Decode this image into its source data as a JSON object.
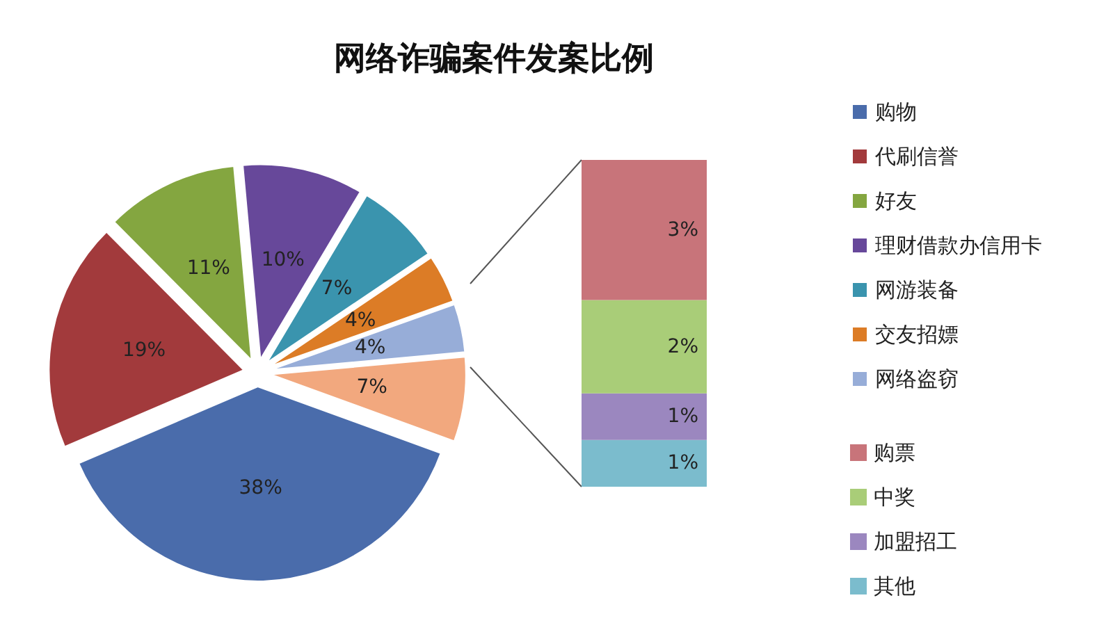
{
  "chart_data": [
    {
      "type": "pie",
      "title": "网络诈骗案件发案比例",
      "categories": [
        "购物",
        "代刷信誉",
        "好友",
        "理财借款办信用卡",
        "网游装备",
        "交友招嫖",
        "网络盗窃",
        null
      ],
      "values": [
        38,
        19,
        11,
        10,
        7,
        4,
        4,
        7
      ],
      "colors": [
        "#4a6cab",
        "#a23a3c",
        "#84a640",
        "#67489a",
        "#3a94ae",
        "#dc7c26",
        "#97add8",
        "#f2a87e"
      ],
      "value_labels": [
        "38%",
        "19%",
        "11%",
        "10%",
        "7%",
        "4%",
        "4%",
        "7%"
      ],
      "legend": "right"
    },
    {
      "type": "bar",
      "stacked": true,
      "categories": [
        null
      ],
      "legend": "right",
      "series": [
        {
          "name": "其他",
          "color": "#7bbccd",
          "values": [
            1
          ],
          "value_labels": [
            "1%"
          ]
        },
        {
          "name": "加盟招工",
          "color": "#9b87bf",
          "values": [
            1
          ],
          "value_labels": [
            "1%"
          ]
        },
        {
          "name": "中奖",
          "color": "#a9cd78",
          "values": [
            2
          ],
          "value_labels": [
            "2%"
          ]
        },
        {
          "name": "购票",
          "color": "#c8747a",
          "values": [
            3
          ],
          "value_labels": [
            "3%"
          ]
        }
      ]
    }
  ]
}
